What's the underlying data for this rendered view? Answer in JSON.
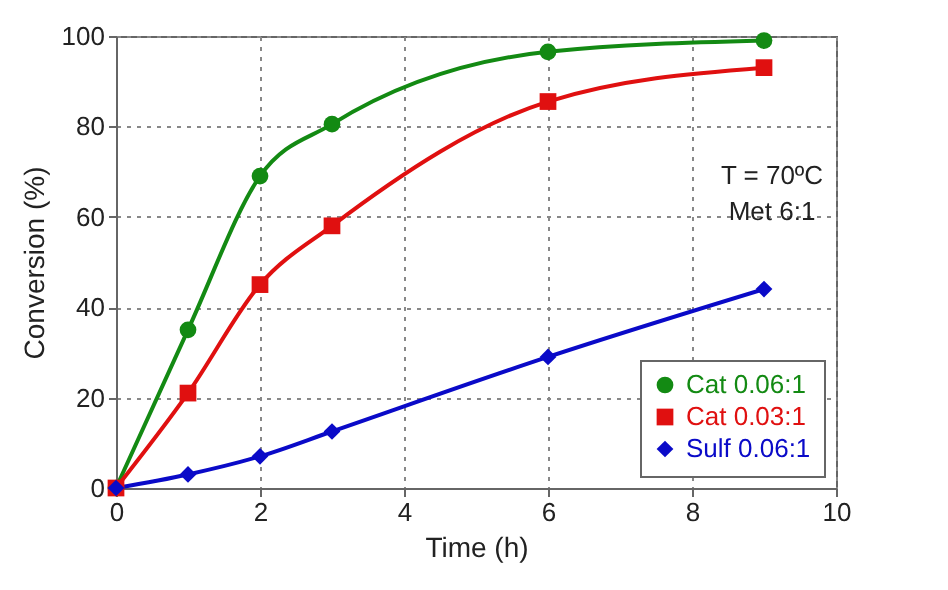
{
  "chart_data": {
    "type": "line",
    "xlabel": "Time (h)",
    "ylabel": "Conversion (%)",
    "x": [
      0,
      1,
      2,
      3,
      6,
      9
    ],
    "series": [
      {
        "name": "Cat 0.06:1",
        "color": "#138a13",
        "marker": "circle",
        "values": [
          0,
          35,
          69,
          80.5,
          96.5,
          99
        ]
      },
      {
        "name": "Cat 0.03:1",
        "color": "#e01010",
        "marker": "square",
        "values": [
          0,
          21,
          45,
          58,
          85.5,
          93
        ]
      },
      {
        "name": "Sulf 0.06:1",
        "color": "#0a0ac8",
        "marker": "diamond",
        "values": [
          0,
          3,
          7,
          12.5,
          29,
          44
        ]
      }
    ],
    "xlim": [
      0,
      10
    ],
    "xticks": [
      0,
      2,
      4,
      6,
      8,
      10
    ],
    "ylim": [
      0,
      100
    ],
    "yticks": [
      0,
      20,
      40,
      60,
      80,
      100
    ],
    "grid": true,
    "legend": "bottom right",
    "line_style": "solid",
    "annotations": [
      "T = 70ºC",
      "Met 6:1"
    ]
  }
}
